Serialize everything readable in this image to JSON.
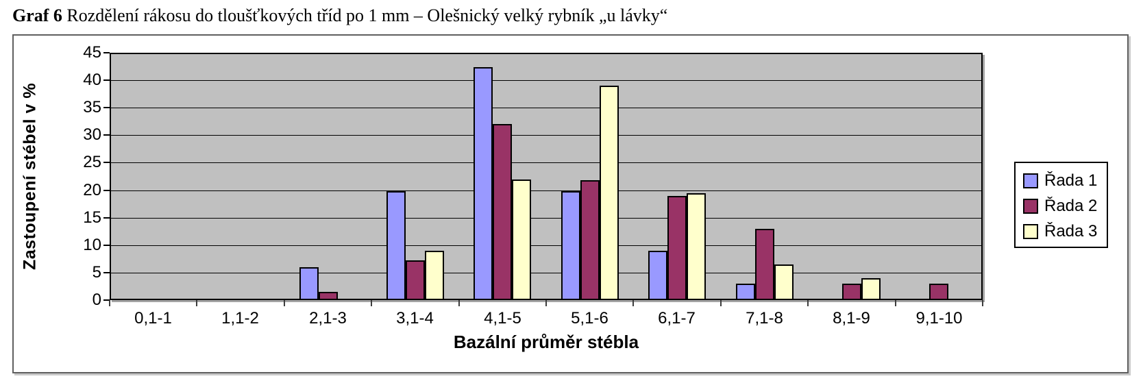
{
  "document": {
    "title_prefix": "Graf 6",
    "title_rest": " Rozdělení rákosu do tloušťkových tříd po 1 mm – Olešnický velký rybník „u lávky“"
  },
  "chart_data": {
    "type": "bar",
    "title": "",
    "xlabel": "Bazální průměr stébla",
    "ylabel": "Zastoupení stébel v %",
    "ylim": [
      0,
      45
    ],
    "yticks": [
      0,
      5,
      10,
      15,
      20,
      25,
      30,
      35,
      40,
      45
    ],
    "grid": true,
    "legend_position": "right",
    "plot_background": "#c0c0c0",
    "categories": [
      "0,1-1",
      "1,1-2",
      "2,1-3",
      "3,1-4",
      "4,1-5",
      "5,1-6",
      "6,1-7",
      "7,1-8",
      "8,1-9",
      "9,1-10"
    ],
    "series": [
      {
        "name": "Řada 1",
        "color": "#9999ff",
        "values": [
          0,
          0,
          6,
          19.8,
          42.4,
          19.8,
          9,
          3,
          0,
          0
        ]
      },
      {
        "name": "Řada 2",
        "color": "#993366",
        "values": [
          0,
          0,
          1.5,
          7.2,
          32,
          21.8,
          18.9,
          13,
          3,
          3
        ]
      },
      {
        "name": "Řada 3",
        "color": "#ffffcc",
        "values": [
          0,
          0,
          0,
          9,
          22,
          39,
          19.5,
          6.5,
          4,
          0
        ]
      }
    ]
  }
}
